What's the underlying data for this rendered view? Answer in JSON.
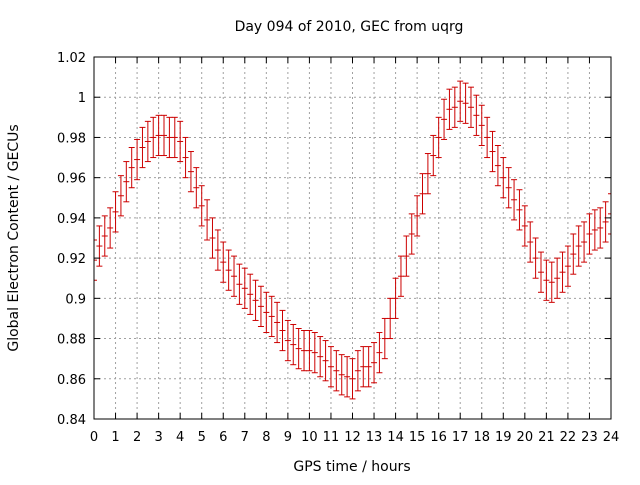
{
  "chart_data": {
    "type": "scatter",
    "title": "Day 094 of 2010, GEC from uqrg",
    "xlabel": "GPS time / hours",
    "ylabel": "Global Electron Content / GECUs",
    "xlim": [
      0,
      24
    ],
    "ylim": [
      0.84,
      1.02
    ],
    "x_ticks": [
      0,
      1,
      2,
      3,
      4,
      5,
      6,
      7,
      8,
      9,
      10,
      11,
      12,
      13,
      14,
      15,
      16,
      17,
      18,
      19,
      20,
      21,
      22,
      23,
      24
    ],
    "y_ticks": [
      0.84,
      0.86,
      0.88,
      0.9,
      0.92,
      0.94,
      0.96,
      0.98,
      1.0,
      1.02
    ],
    "y_tick_labels": [
      "0.84",
      "0.86",
      "0.88",
      "0.9",
      "0.92",
      "0.94",
      "0.96",
      "0.98",
      "1",
      "1.02"
    ],
    "grid": true,
    "legend": "none",
    "error_bar": 0.01,
    "color": "#cc0000",
    "series": [
      {
        "x": [
          0,
          0.25,
          0.5,
          0.75,
          1,
          1.25,
          1.5,
          1.75,
          2,
          2.25,
          2.5,
          2.75,
          3,
          3.25,
          3.5,
          3.75,
          4,
          4.25,
          4.5,
          4.75,
          5,
          5.25,
          5.5,
          5.75,
          6,
          6.25,
          6.5,
          6.75,
          7,
          7.25,
          7.5,
          7.75,
          8,
          8.25,
          8.5,
          8.75,
          9,
          9.25,
          9.5,
          9.75,
          10,
          10.25,
          10.5,
          10.75,
          11,
          11.25,
          11.5,
          11.75,
          12,
          12.25,
          12.5,
          12.75,
          13,
          13.25,
          13.5,
          13.75,
          14,
          14.25,
          14.5,
          14.75,
          15,
          15.25,
          15.5,
          15.75,
          16,
          16.25,
          16.5,
          16.75,
          17,
          17.25,
          17.5,
          17.75,
          18,
          18.25,
          18.5,
          18.75,
          19,
          19.25,
          19.5,
          19.75,
          20,
          20.25,
          20.5,
          20.75,
          21,
          21.25,
          21.5,
          21.75,
          22,
          22.25,
          22.5,
          22.75,
          23,
          23.25,
          23.5,
          23.75,
          24
        ],
        "y": [
          0.919,
          0.926,
          0.931,
          0.935,
          0.943,
          0.951,
          0.958,
          0.965,
          0.969,
          0.975,
          0.978,
          0.98,
          0.981,
          0.981,
          0.98,
          0.98,
          0.978,
          0.97,
          0.963,
          0.955,
          0.946,
          0.939,
          0.93,
          0.924,
          0.918,
          0.914,
          0.911,
          0.907,
          0.905,
          0.902,
          0.899,
          0.896,
          0.893,
          0.891,
          0.888,
          0.884,
          0.879,
          0.877,
          0.875,
          0.874,
          0.874,
          0.873,
          0.871,
          0.869,
          0.866,
          0.864,
          0.862,
          0.861,
          0.86,
          0.864,
          0.866,
          0.866,
          0.868,
          0.873,
          0.88,
          0.89,
          0.9,
          0.911,
          0.921,
          0.932,
          0.941,
          0.952,
          0.962,
          0.971,
          0.98,
          0.989,
          0.994,
          0.995,
          0.998,
          0.997,
          0.995,
          0.991,
          0.986,
          0.98,
          0.973,
          0.966,
          0.96,
          0.955,
          0.949,
          0.944,
          0.936,
          0.928,
          0.92,
          0.913,
          0.909,
          0.908,
          0.91,
          0.913,
          0.916,
          0.922,
          0.926,
          0.928,
          0.932,
          0.934,
          0.935,
          0.938,
          0.942
        ]
      }
    ]
  }
}
